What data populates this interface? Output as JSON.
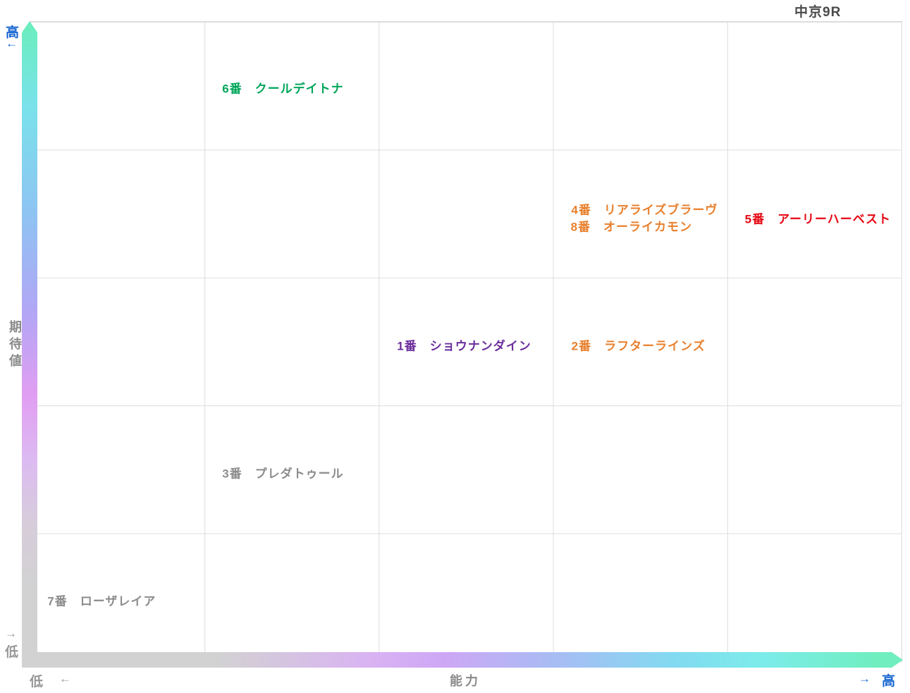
{
  "title": "中京9R",
  "y_axis": {
    "label": "期待値",
    "label_chars": [
      "期",
      "待",
      "値"
    ],
    "high_label": "高",
    "high_arrow": "←",
    "low_arrow": "→",
    "low_label": "低"
  },
  "x_axis": {
    "label": "能力",
    "low_label": "低",
    "low_arrow": "←",
    "high_arrow": "→",
    "high_label": "高"
  },
  "colors": {
    "axis_high_blue": "#1565d0",
    "axis_low_gray": "#979797",
    "axis_title_gray": "#8a8a8a",
    "chart_title_gray": "#4a4a4a",
    "grid_line": "#dcdcdc",
    "bar_gray_end": "#d2d2d2",
    "bar_mint_end": "#70eec0"
  },
  "chart_data": {
    "type": "scatter",
    "title": "中京9R",
    "xlabel": "能力",
    "ylabel": "期待値",
    "x_axis_range_labels": [
      "低",
      "高"
    ],
    "y_axis_range_labels": [
      "低",
      "高"
    ],
    "grid": "5x5",
    "legend": "none",
    "points": [
      {
        "number": "6番",
        "name": "クールデイトナ",
        "label": "6番　クールデイトナ",
        "color": "#00a65a",
        "x_pct": 29.0,
        "y_pct": 89.7
      },
      {
        "number": "4番",
        "name": "リアライズブラーヴ",
        "label": "4番　リアライズブラーヴ",
        "color": "#e8802e",
        "x_pct": 70.5,
        "y_pct": 70.8
      },
      {
        "number": "8番",
        "name": "オーライカモン",
        "label": "8番　オーライカモン",
        "color": "#e8802e",
        "x_pct": 69.0,
        "y_pct": 68.1
      },
      {
        "number": "5番",
        "name": "アーリーハーベスト",
        "label": "5番　アーリーハーベスト",
        "color": "#e60613",
        "x_pct": 90.4,
        "y_pct": 69.4
      },
      {
        "number": "1番",
        "name": "ショウナンダイン",
        "label": "1番　ショウナンダイン",
        "color": "#6b2d9b",
        "x_pct": 49.8,
        "y_pct": 49.5
      },
      {
        "number": "2番",
        "name": "ラフターラインズ",
        "label": "2番　ラフターラインズ",
        "color": "#e8802e",
        "x_pct": 69.8,
        "y_pct": 49.5
      },
      {
        "number": "3番",
        "name": "プレダトゥール",
        "label": "3番　プレダトゥール",
        "color": "#8c8c8c",
        "x_pct": 29.0,
        "y_pct": 29.6
      },
      {
        "number": "7番",
        "name": "ローザレイア",
        "label": "7番　ローザレイア",
        "color": "#8c8c8c",
        "x_pct": 8.2,
        "y_pct": 9.6
      }
    ]
  }
}
